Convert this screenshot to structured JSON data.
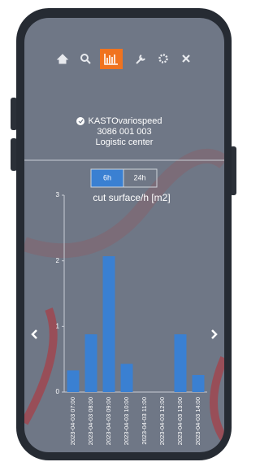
{
  "device": {
    "name": "KASTOvariospeed",
    "number": "3086 001 003",
    "location": "Logistic center"
  },
  "range_buttons": [
    "6h",
    "24h"
  ],
  "chart_data": {
    "type": "bar",
    "title": "cut surface/h [m2]",
    "categories": [
      "2023-04-03 07:00",
      "2023-04-03 08:00",
      "2023-04-03 09:00",
      "2023-04-03 10:00",
      "2023-04-03 11:00",
      "2023-04-03 12:00",
      "2023-04-03 13:00",
      "2023-04-03 14:00"
    ],
    "values": [
      0.33,
      0.88,
      2.07,
      0.43,
      0,
      0,
      0.88,
      0.26
    ],
    "color": "#3a80d2",
    "ylim": [
      0,
      3
    ],
    "yticks": [
      0,
      1,
      2,
      3
    ],
    "grid": false
  }
}
